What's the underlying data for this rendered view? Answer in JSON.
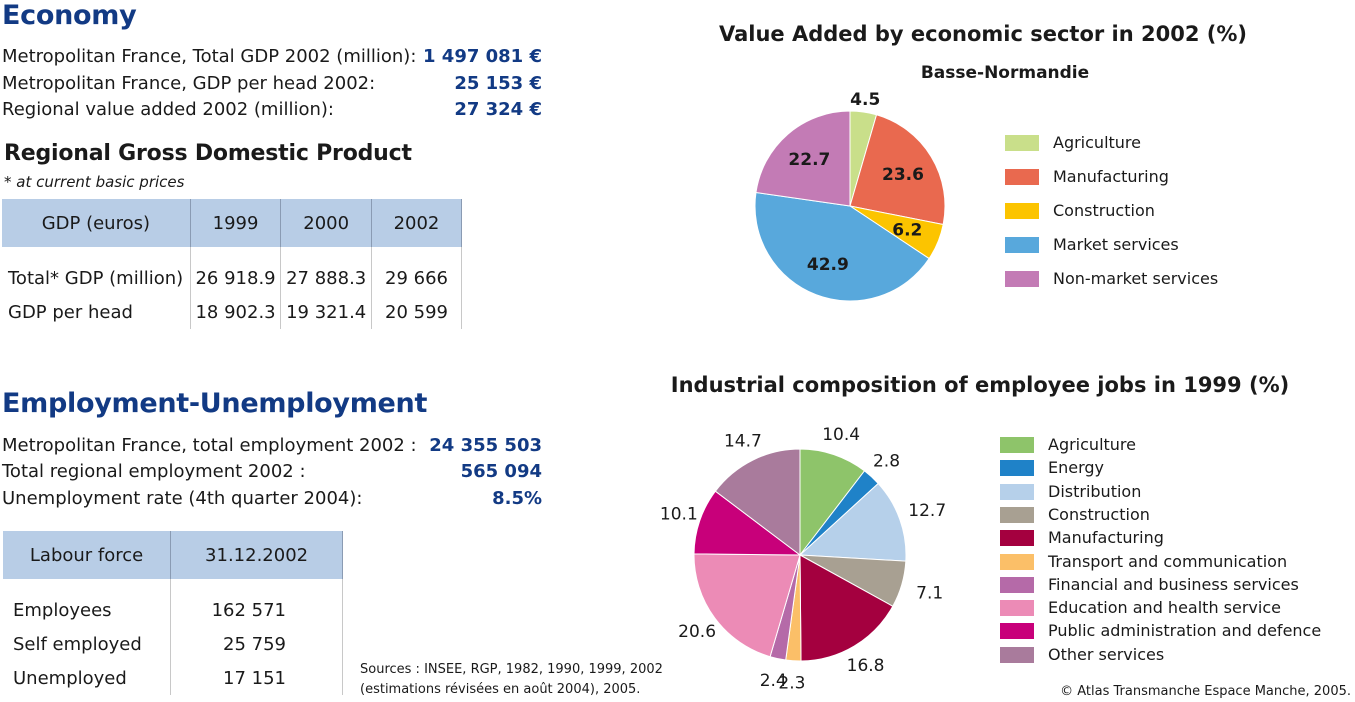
{
  "economy": {
    "heading": "Economy",
    "stats": [
      {
        "label": "Metropolitan France, Total GDP 2002 (million):",
        "value": "1 497 081 €"
      },
      {
        "label": "Metropolitan France, GDP per head 2002:",
        "value": "25 153 €"
      },
      {
        "label": "Regional value added 2002 (million):",
        "value": "27 324 €"
      }
    ]
  },
  "gdp_table": {
    "heading": "Regional Gross Domestic Product",
    "note": "* at current basic prices",
    "headers": [
      "GDP (euros)",
      "1999",
      "2000",
      "2002"
    ],
    "rows": [
      [
        "Total* GDP (million)",
        "26 918.9",
        "27 888.3",
        "29 666"
      ],
      [
        "GDP per head",
        "18 902.3",
        "19 321.4",
        "20 599"
      ]
    ]
  },
  "employment": {
    "heading": "Employment-Unemployment",
    "stats": [
      {
        "label": "Metropolitan France, total employment 2002 :",
        "value": "24 355 503"
      },
      {
        "label": "Total regional employment 2002 :",
        "value": "565 094"
      },
      {
        "label": "Unemployment rate (4th quarter 2004):",
        "value": "8.5%"
      }
    ]
  },
  "labour_table": {
    "headers": [
      "Labour force",
      "31.12.2002"
    ],
    "rows": [
      [
        "Employees",
        "162 571"
      ],
      [
        "Self employed",
        "25 759"
      ],
      [
        "Unemployed",
        "17 151"
      ]
    ]
  },
  "sources": [
    "Sources : INSEE, RGP, 1982, 1990, 1999, 2002",
    "(estimations révisées en août 2004), 2005."
  ],
  "copyright": "© Atlas Transmanche Espace Manche, 2005.",
  "chart_data": [
    {
      "type": "pie",
      "title": "Value Added by economic sector in 2002 (%)",
      "subtitle": "Basse-Normandie",
      "legend_position": "right",
      "categories": [
        "Agriculture",
        "Manufacturing",
        "Construction",
        "Market services",
        "Non-market services"
      ],
      "values": [
        4.5,
        23.6,
        6.2,
        42.9,
        22.7
      ],
      "labels": [
        "4.5",
        "23.6",
        "6.2",
        "42.9",
        "22.7"
      ],
      "colors": [
        "#c9df8a",
        "#e9694f",
        "#fcc400",
        "#58a8dc",
        "#c37bb5"
      ]
    },
    {
      "type": "pie",
      "title": "Industrial composition of employee jobs in 1999 (%)",
      "legend_position": "right",
      "categories": [
        "Agriculture",
        "Energy",
        "Distribution",
        "Construction",
        "Manufacturing",
        "Transport and communication",
        "Financial and business services",
        "Education and health service",
        "Public administration and defence",
        "Other services"
      ],
      "values": [
        10.4,
        2.8,
        12.7,
        7.1,
        16.8,
        2.3,
        2.4,
        20.6,
        10.1,
        14.7
      ],
      "labels": [
        "10.4",
        "2.8",
        "12.7",
        "7.1",
        "16.8",
        "2.3",
        "2.4",
        "20.6",
        "10.1",
        "14.7"
      ],
      "colors": [
        "#8ec46a",
        "#1f82c8",
        "#b6d0ea",
        "#a8a092",
        "#a4003f",
        "#fbbf68",
        "#b56aa8",
        "#ec8bb6",
        "#c8007a",
        "#a97b9c"
      ]
    }
  ]
}
